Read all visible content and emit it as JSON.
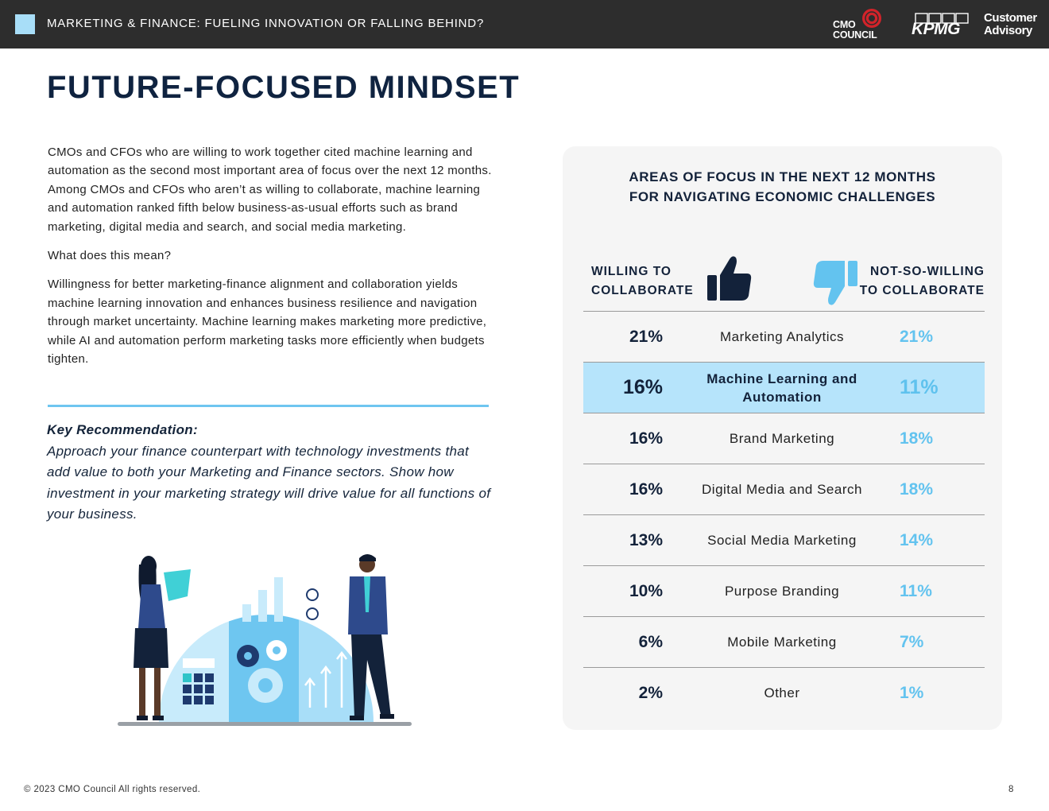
{
  "header": {
    "title": "MARKETING & FINANCE: FUELING INNOVATION OR FALLING BEHIND?",
    "logo_cmo": [
      "CMO",
      "COUNCIL"
    ],
    "logo_kpmg": "KPMG",
    "logo_advisory": [
      "Customer",
      "Advisory"
    ]
  },
  "page_title": "FUTURE-FOCUSED MINDSET",
  "body": {
    "p1": "CMOs and CFOs who are willing to work together cited machine learning and automation as the second most important area of focus over the next 12 months. Among CMOs and CFOs who aren’t as willing to collaborate, machine learning and automation ranked fifth below business-as-usual efforts such as brand marketing, digital media and search, and social media marketing.",
    "p2": "What does this mean?",
    "p3": "Willingness for better marketing-finance alignment and collaboration yields machine learning innovation and enhances business resilience and navigation through market uncertainty. Machine learning makes marketing more predictive, while AI and automation perform marketing tasks more efficiently when budgets tighten."
  },
  "key_recommendation": {
    "label": "Key Recommendation:",
    "text": "Approach your finance counterpart with technology investments that add value to both your Marketing and Finance sectors. Show how investment in your marketing strategy will drive value for all functions of your business."
  },
  "panel": {
    "title_line1": "AREAS OF FOCUS IN THE NEXT 12 MONTHS",
    "title_line2": "FOR NAVIGATING ECONOMIC CHALLENGES",
    "left_header_line1": "WILLING TO",
    "left_header_line2": "COLLABORATE",
    "right_header_line1": "NOT-SO-WILLING",
    "right_header_line2": "TO COLLABORATE",
    "icons": {
      "left": "thumbs-up-icon",
      "right": "thumbs-down-icon"
    },
    "colors": {
      "highlight": "#b6e4fb",
      "right_values": "#63c3ef",
      "dark": "#13223a"
    }
  },
  "chart_data": {
    "type": "table",
    "title": "AREAS OF FOCUS IN THE NEXT 12 MONTHS FOR NAVIGATING ECONOMIC CHALLENGES",
    "columns": [
      "WILLING TO COLLABORATE",
      "",
      "NOT-SO-WILLING TO COLLABORATE"
    ],
    "rows": [
      {
        "label": "Marketing Analytics",
        "willing": "21%",
        "not_willing": "21%",
        "highlight": false
      },
      {
        "label": "Machine Learning and Automation",
        "willing": "16%",
        "not_willing": "11%",
        "highlight": true
      },
      {
        "label": "Brand Marketing",
        "willing": "16%",
        "not_willing": "18%",
        "highlight": false
      },
      {
        "label": "Digital Media and Search",
        "willing": "16%",
        "not_willing": "18%",
        "highlight": false
      },
      {
        "label": "Social Media Marketing",
        "willing": "13%",
        "not_willing": "14%",
        "highlight": false
      },
      {
        "label": "Purpose Branding",
        "willing": "10%",
        "not_willing": "11%",
        "highlight": false
      },
      {
        "label": "Mobile Marketing",
        "willing": "6%",
        "not_willing": "7%",
        "highlight": false
      },
      {
        "label": "Other",
        "willing": "2%",
        "not_willing": "1%",
        "highlight": false
      }
    ]
  },
  "footer": {
    "copyright": "© 2023 CMO Council  All rights reserved.",
    "page_number": "8"
  }
}
